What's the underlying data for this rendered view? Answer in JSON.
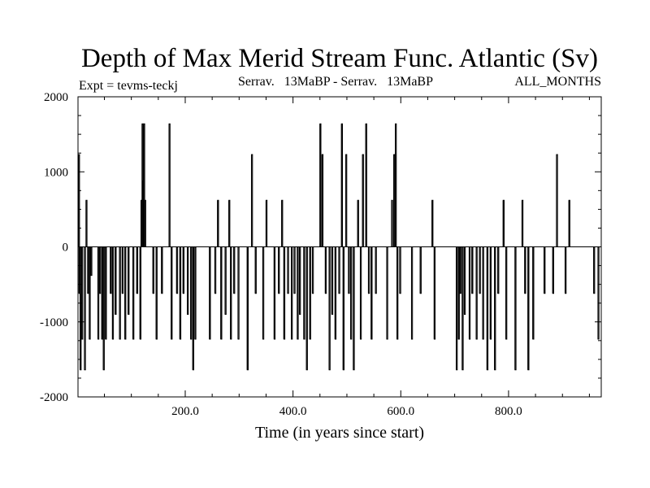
{
  "chart_data": {
    "type": "line",
    "title": "Depth of Max Merid Stream Func. Atlantic (Sv)",
    "subtitle_left": "Expt = tevms-teckj",
    "subtitle_center": "Serrav.   13MaBP - Serrav.   13MaBP",
    "subtitle_right": "ALL_MONTHS",
    "xlabel": "Time (in years since start)",
    "ylabel": "",
    "xlim": [
      1,
      972
    ],
    "ylim": [
      -2000,
      2000
    ],
    "x_ticks": [
      200,
      400,
      600,
      800
    ],
    "x_tick_labels": [
      "200.0",
      "400.0",
      "600.0",
      "800.0"
    ],
    "y_ticks": [
      -2000,
      -1000,
      0,
      1000,
      2000
    ],
    "y_tick_labels": [
      "-2000",
      "-1000",
      "0",
      "1000",
      "2000"
    ],
    "series": [
      {
        "name": "Depth of Max Merid Stream Func.",
        "color": "#000000",
        "spikes": [
          [
            2,
            1230
          ],
          [
            3,
            -620
          ],
          [
            5,
            -1640
          ],
          [
            8,
            -1230
          ],
          [
            13,
            -1640
          ],
          [
            16,
            620
          ],
          [
            19,
            -620
          ],
          [
            22,
            -1230
          ],
          [
            25,
            -380
          ],
          [
            38,
            -1230
          ],
          [
            41,
            -620
          ],
          [
            45,
            -1230
          ],
          [
            48,
            -1640
          ],
          [
            52,
            -1230
          ],
          [
            61,
            -620
          ],
          [
            65,
            -1230
          ],
          [
            70,
            -900
          ],
          [
            78,
            -1230
          ],
          [
            83,
            -620
          ],
          [
            88,
            -1230
          ],
          [
            94,
            -900
          ],
          [
            103,
            -1230
          ],
          [
            110,
            -620
          ],
          [
            116,
            -1230
          ],
          [
            118,
            620
          ],
          [
            120,
            1640
          ],
          [
            121,
            880
          ],
          [
            123,
            1640
          ],
          [
            125,
            620
          ],
          [
            140,
            -620
          ],
          [
            146,
            -1230
          ],
          [
            156,
            -620
          ],
          [
            170,
            1640
          ],
          [
            174,
            -1230
          ],
          [
            184,
            -620
          ],
          [
            190,
            -1230
          ],
          [
            196,
            -620
          ],
          [
            204,
            -900
          ],
          [
            210,
            -1230
          ],
          [
            214,
            -1640
          ],
          [
            218,
            -1230
          ],
          [
            245,
            -1230
          ],
          [
            255,
            -620
          ],
          [
            260,
            620
          ],
          [
            266,
            -1230
          ],
          [
            274,
            -900
          ],
          [
            281,
            620
          ],
          [
            284,
            -1230
          ],
          [
            290,
            -620
          ],
          [
            298,
            -1230
          ],
          [
            315,
            -1640
          ],
          [
            323,
            1230
          ],
          [
            330,
            -620
          ],
          [
            344,
            -1230
          ],
          [
            350,
            620
          ],
          [
            365,
            -1230
          ],
          [
            373,
            -620
          ],
          [
            379,
            620
          ],
          [
            383,
            -1230
          ],
          [
            390,
            -620
          ],
          [
            397,
            -1230
          ],
          [
            402,
            -620
          ],
          [
            408,
            -1230
          ],
          [
            412,
            -900
          ],
          [
            420,
            -1230
          ],
          [
            425,
            -1640
          ],
          [
            431,
            -1230
          ],
          [
            436,
            -620
          ],
          [
            450,
            1640
          ],
          [
            454,
            1230
          ],
          [
            460,
            -620
          ],
          [
            467,
            -1640
          ],
          [
            472,
            -900
          ],
          [
            478,
            -1230
          ],
          [
            485,
            -620
          ],
          [
            490,
            1640
          ],
          [
            493,
            -1640
          ],
          [
            498,
            1230
          ],
          [
            503,
            -620
          ],
          [
            507,
            -1230
          ],
          [
            512,
            -1640
          ],
          [
            520,
            620
          ],
          [
            525,
            -1230
          ],
          [
            529,
            1230
          ],
          [
            535,
            1640
          ],
          [
            540,
            -620
          ],
          [
            545,
            -1230
          ],
          [
            553,
            -620
          ],
          [
            574,
            -1230
          ],
          [
            583,
            620
          ],
          [
            587,
            1230
          ],
          [
            590,
            1640
          ],
          [
            593,
            -1230
          ],
          [
            598,
            -620
          ],
          [
            620,
            -1230
          ],
          [
            636,
            -620
          ],
          [
            658,
            620
          ],
          [
            662,
            -1230
          ],
          [
            703,
            -1640
          ],
          [
            707,
            -1230
          ],
          [
            710,
            -620
          ],
          [
            714,
            -1640
          ],
          [
            718,
            -900
          ],
          [
            727,
            -1230
          ],
          [
            732,
            -620
          ],
          [
            740,
            -1230
          ],
          [
            746,
            -620
          ],
          [
            752,
            -1230
          ],
          [
            760,
            -1640
          ],
          [
            766,
            -1230
          ],
          [
            774,
            -1640
          ],
          [
            780,
            -620
          ],
          [
            790,
            620
          ],
          [
            795,
            -1230
          ],
          [
            812,
            -1640
          ],
          [
            825,
            620
          ],
          [
            830,
            -620
          ],
          [
            836,
            -1640
          ],
          [
            845,
            -1230
          ],
          [
            866,
            -620
          ],
          [
            882,
            -620
          ],
          [
            889,
            1230
          ],
          [
            905,
            -620
          ],
          [
            912,
            620
          ],
          [
            958,
            -620
          ],
          [
            966,
            -1230
          ]
        ]
      }
    ]
  }
}
